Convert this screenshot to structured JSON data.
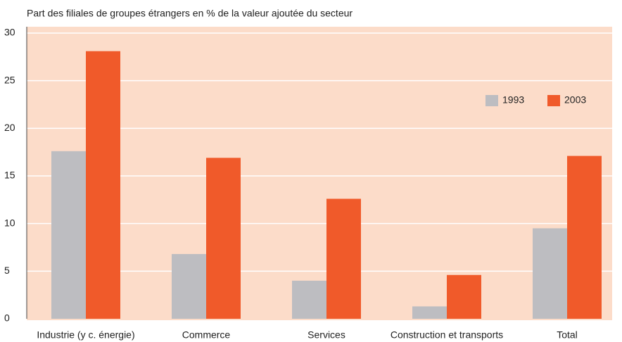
{
  "chart_data": {
    "type": "bar",
    "subtitle": "Part des filiales de groupes étrangers en % de la valeur ajoutée du secteur",
    "categories": [
      "Industrie (y c. énergie)",
      "Commerce",
      "Services",
      "Construction et transports",
      "Total"
    ],
    "series": [
      {
        "name": "1993",
        "color": "#bdbdc1",
        "values": [
          17.6,
          6.8,
          4.0,
          1.3,
          9.5
        ]
      },
      {
        "name": "2003",
        "color": "#f05a2a",
        "values": [
          28.1,
          16.9,
          12.6,
          4.6,
          17.1
        ]
      }
    ],
    "ylim": [
      0,
      30
    ],
    "yticks": [
      0,
      5,
      10,
      15,
      20,
      25,
      30
    ],
    "grid": true,
    "legend": "upper right"
  }
}
